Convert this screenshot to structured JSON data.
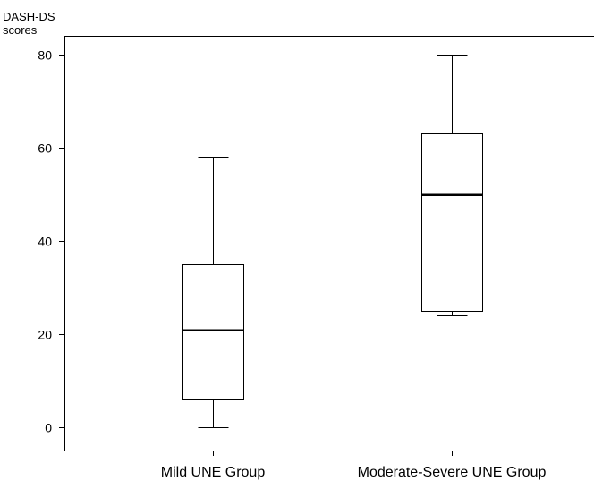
{
  "chart_data": {
    "type": "box",
    "ylabel_lines": [
      "DASH-DS",
      "scores"
    ],
    "xlabel": "",
    "ylim": [
      -5,
      84
    ],
    "yticks": [
      0,
      20,
      40,
      60,
      80
    ],
    "grid": false,
    "categories": [
      "Mild UNE Group",
      "Moderate-Severe UNE Group"
    ],
    "boxes": [
      {
        "category": "Mild UNE Group",
        "min": 0,
        "q1": 6,
        "median": 21,
        "q3": 35,
        "max": 58
      },
      {
        "category": "Moderate-Severe UNE Group",
        "min": 24,
        "q1": 25,
        "median": 50,
        "q3": 63,
        "max": 80
      }
    ]
  }
}
